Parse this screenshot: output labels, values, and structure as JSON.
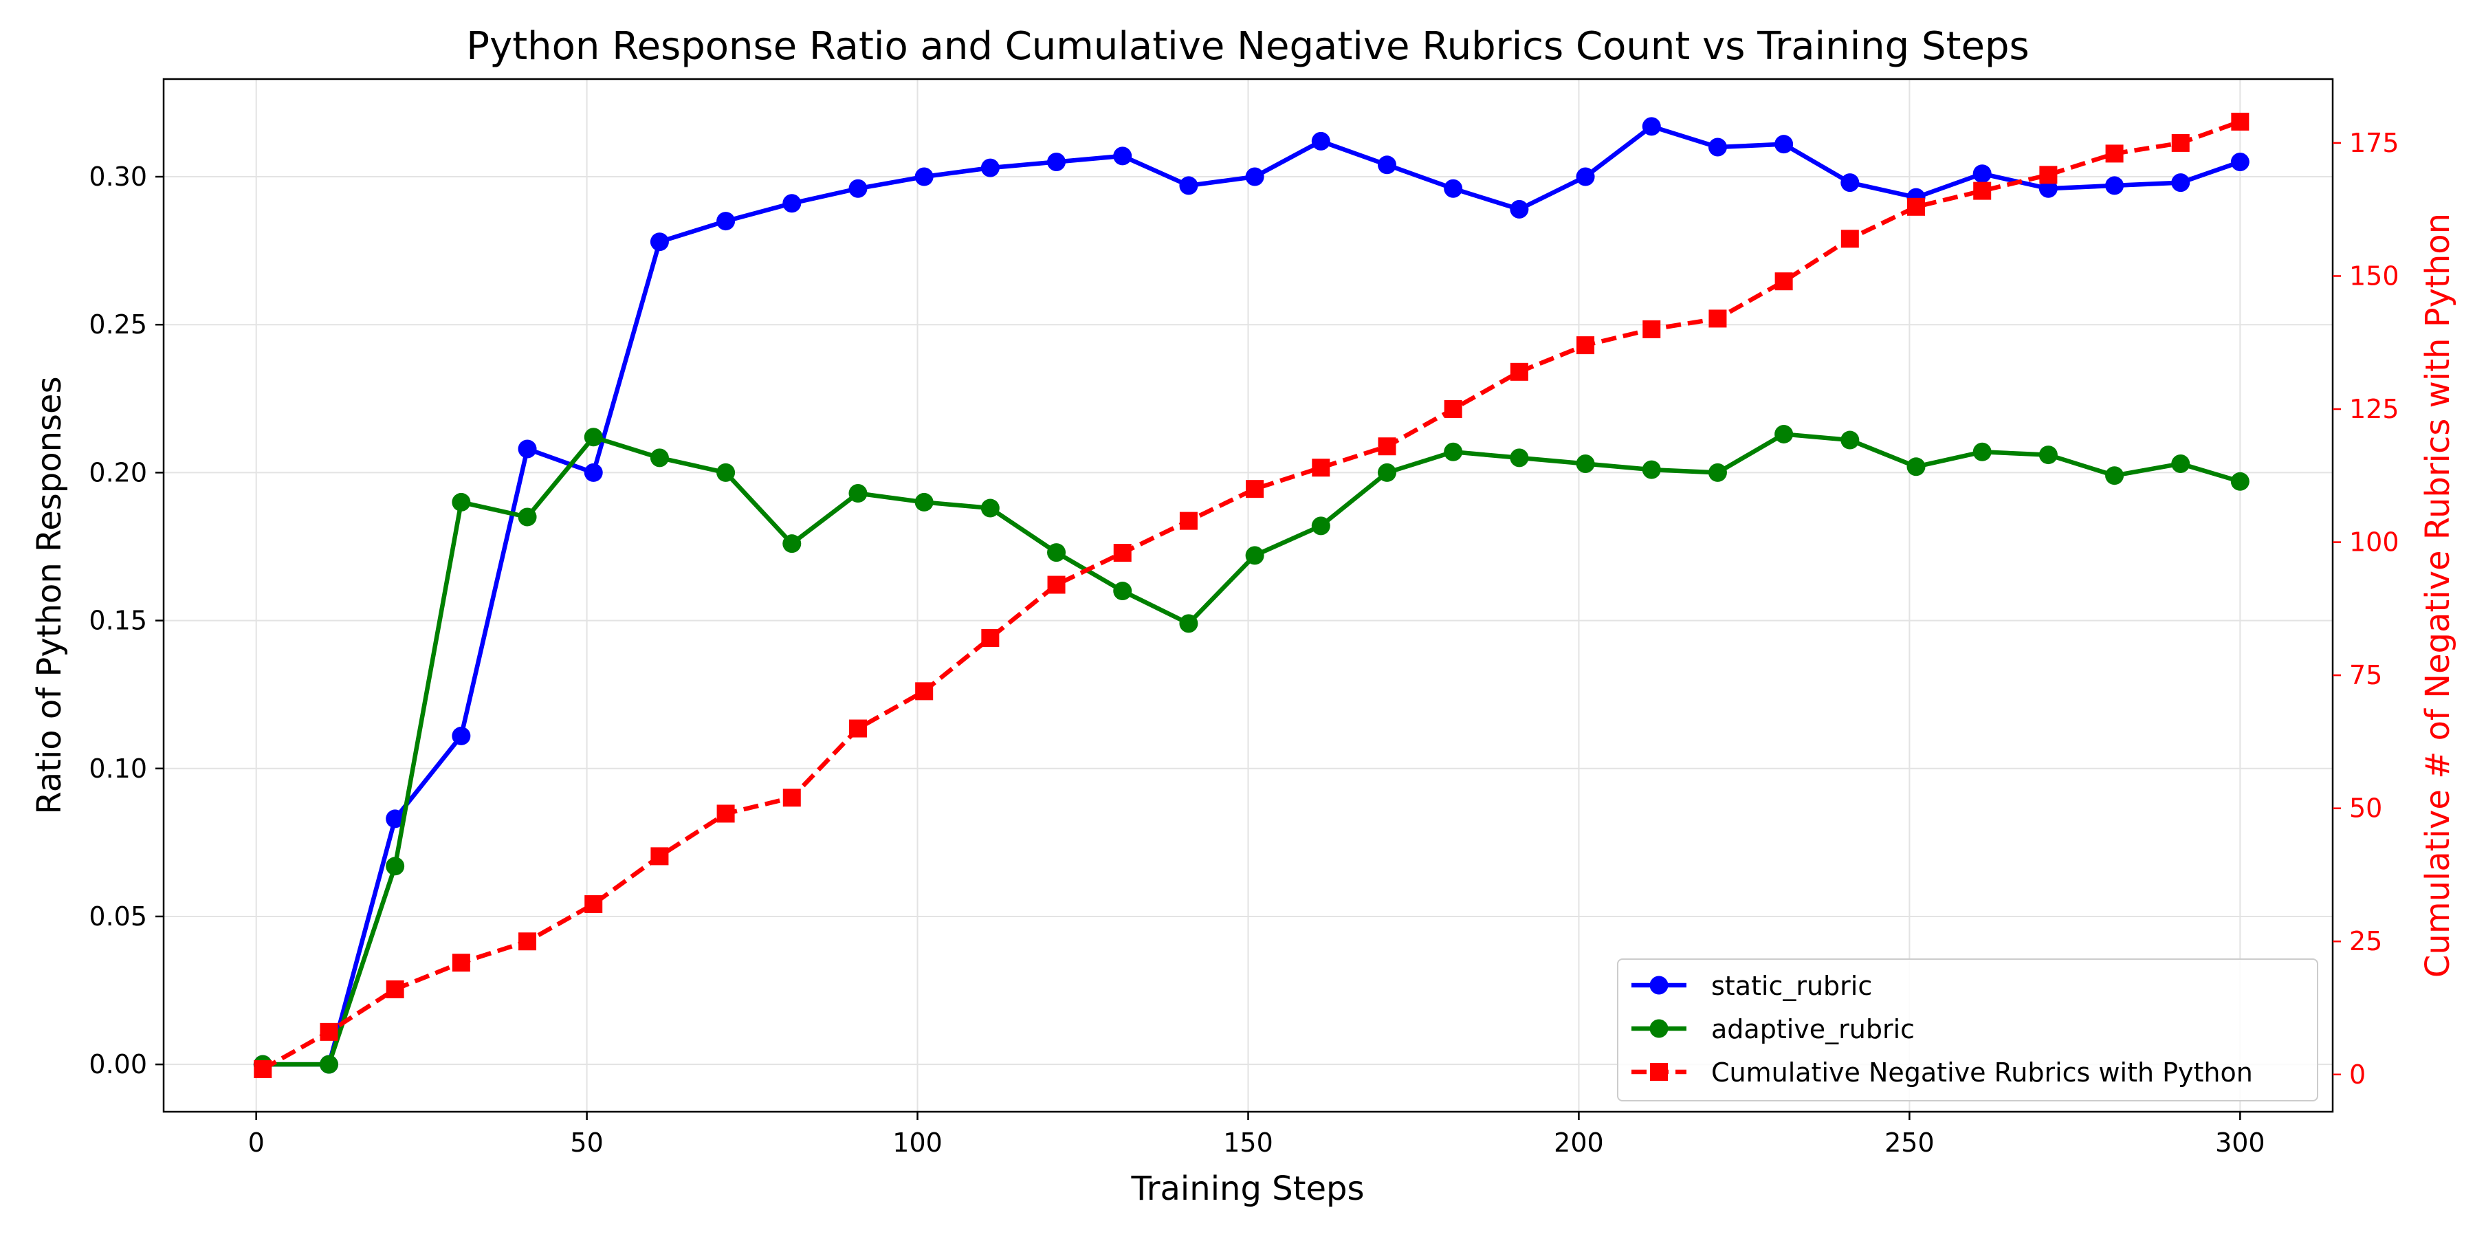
{
  "chart_data": {
    "type": "line",
    "title": "Python Response Ratio and Cumulative Negative Rubrics Count vs Training Steps",
    "xlabel": "Training Steps",
    "ylabel": "Ratio of Python Responses",
    "y2label": "Cumulative # of Negative Rubrics with Python",
    "xlim": [
      -14,
      314
    ],
    "ylim": [
      -0.016,
      0.333
    ],
    "y2lim": [
      -7,
      187
    ],
    "xticks": [
      0,
      50,
      100,
      150,
      200,
      250,
      300
    ],
    "xtick_labels": [
      "0",
      "50",
      "100",
      "150",
      "200",
      "250",
      "300"
    ],
    "yticks": [
      0.0,
      0.05,
      0.1,
      0.15,
      0.2,
      0.25,
      0.3
    ],
    "ytick_labels": [
      "0.00",
      "0.05",
      "0.10",
      "0.15",
      "0.20",
      "0.25",
      "0.30"
    ],
    "y2ticks": [
      0,
      25,
      50,
      75,
      100,
      125,
      150,
      175
    ],
    "y2tick_labels": [
      "0",
      "25",
      "50",
      "75",
      "100",
      "125",
      "150",
      "175"
    ],
    "grid": true,
    "legend_position": "lower-right",
    "x": [
      1,
      11,
      21,
      31,
      41,
      51,
      61,
      71,
      81,
      91,
      101,
      111,
      121,
      131,
      141,
      151,
      161,
      171,
      181,
      191,
      201,
      211,
      221,
      231,
      241,
      251,
      261,
      271,
      281,
      291,
      300
    ],
    "series": [
      {
        "name": "static_rubric",
        "axis": "left",
        "color": "#0000ff",
        "marker": "circle",
        "linestyle": "solid",
        "values": [
          0.0,
          0.0,
          0.083,
          0.111,
          0.208,
          0.2,
          0.278,
          0.285,
          0.291,
          0.296,
          0.3,
          0.303,
          0.305,
          0.307,
          0.297,
          0.3,
          0.312,
          0.304,
          0.296,
          0.289,
          0.3,
          0.317,
          0.31,
          0.311,
          0.298,
          0.293,
          0.301,
          0.296,
          0.297,
          0.298,
          0.305
        ]
      },
      {
        "name": "adaptive_rubric",
        "axis": "left",
        "color": "#008000",
        "marker": "circle",
        "linestyle": "solid",
        "values": [
          0.0,
          0.0,
          0.067,
          0.19,
          0.185,
          0.212,
          0.205,
          0.2,
          0.176,
          0.193,
          0.19,
          0.188,
          0.173,
          0.16,
          0.149,
          0.172,
          0.182,
          0.2,
          0.207,
          0.205,
          0.203,
          0.201,
          0.2,
          0.213,
          0.211,
          0.202,
          0.207,
          0.206,
          0.199,
          0.203,
          0.197
        ]
      },
      {
        "name": "Cumulative Negative Rubrics with Python",
        "axis": "right",
        "color": "#ff0000",
        "marker": "square",
        "linestyle": "dashed",
        "values": [
          1,
          8,
          16,
          21,
          25,
          32,
          41,
          49,
          52,
          65,
          72,
          82,
          92,
          98,
          104,
          110,
          114,
          118,
          125,
          132,
          137,
          140,
          142,
          149,
          157,
          163,
          166,
          169,
          173,
          175,
          179
        ]
      }
    ]
  }
}
